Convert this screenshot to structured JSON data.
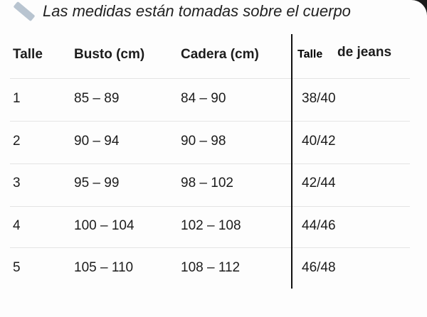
{
  "title": "Las medidas están tomadas sobre el cuerpo",
  "title_icon": "ruler-icon",
  "headers": {
    "talle": "Talle",
    "busto": "Busto (cm)",
    "cadera": "Cadera (cm)",
    "jeans_a": "Talle",
    "jeans_b": "de jeans"
  },
  "rows": [
    {
      "talle": "1",
      "busto": "85 – 89",
      "cadera": "84 – 90",
      "jeans": "38/40"
    },
    {
      "talle": "2",
      "busto": "90 – 94",
      "cadera": "90 – 98",
      "jeans": "40/42"
    },
    {
      "talle": "3",
      "busto": "95 – 99",
      "cadera": "98 – 102",
      "jeans": "42/44"
    },
    {
      "talle": "4",
      "busto": "100 – 104",
      "cadera": "102 – 108",
      "jeans": "44/46"
    },
    {
      "talle": "5",
      "busto": "105 – 110",
      "cadera": "108 – 112",
      "jeans": "46/48"
    }
  ]
}
